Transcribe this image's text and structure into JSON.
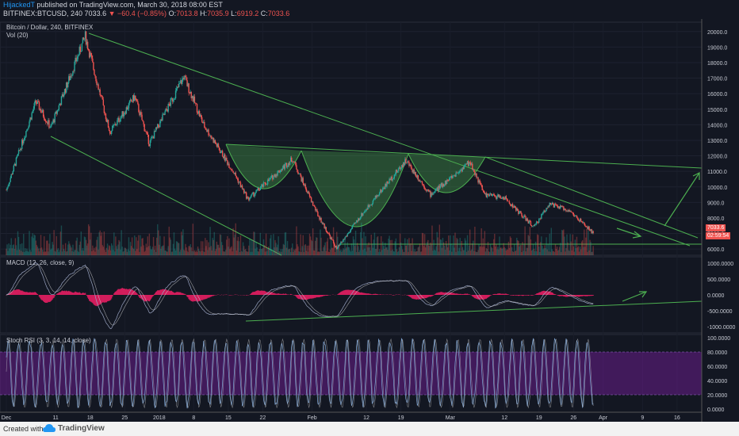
{
  "header": {
    "author": "HijackedT",
    "published": "published on TradingView.com, March 30, 2018 08:00 EST",
    "symbol": "BITFINEX:BTCUSD, 240",
    "price": "7033.6",
    "change": "▼ −60.4 (−0.85%)",
    "ohlc": {
      "o_label": "O:",
      "o": "7013.8",
      "h_label": "H:",
      "h": "7035.9",
      "l_label": "L:",
      "l": "6919.2",
      "c_label": "C:",
      "c": "7033.6"
    }
  },
  "pane_labels": {
    "main": "Bitcoin / Dollar, 240, BITFINEX",
    "vol": "Vol (20)",
    "macd": "MACD (12, 26, close, 9)",
    "stoch": "Stoch RSI (3, 3, 14, 14, close)"
  },
  "badges": {
    "price": "7033.6",
    "timer": "02:59:54"
  },
  "footer": {
    "created_with": "Created with",
    "brand": "TradingView"
  },
  "colors": {
    "up": "#26a69a",
    "down": "#ef5350",
    "trend": "#4caf50",
    "macd": "#e91e63",
    "stoch_band": "#7b1fa2"
  },
  "chart_data": [
    {
      "type": "candlestick",
      "title": "Bitcoin / Dollar, 240, BITFINEX",
      "x_ticks": [
        "Dec",
        "11",
        "18",
        "25",
        "2018",
        "8",
        "15",
        "22",
        "Feb",
        "12",
        "19",
        "Mar",
        "12",
        "19",
        "26",
        "Apr",
        "9",
        "16"
      ],
      "y_ticks": [
        "6000.0",
        "7000.0",
        "8000.0",
        "9000.0",
        "10000.0",
        "11000.0",
        "12000.0",
        "13000.0",
        "14000.0",
        "15000.0",
        "16000.0",
        "17000.0",
        "18000.0",
        "19000.0",
        "20000.0"
      ],
      "ylim": [
        5600,
        20600
      ],
      "last": 7033.6,
      "approx_path": [
        {
          "x": "Dec 1",
          "y": 9800
        },
        {
          "x": "Dec 7",
          "y": 15500
        },
        {
          "x": "Dec 10",
          "y": 13800
        },
        {
          "x": "Dec 17",
          "y": 19700
        },
        {
          "x": "Dec 22",
          "y": 13500
        },
        {
          "x": "Dec 27",
          "y": 15800
        },
        {
          "x": "Dec 30",
          "y": 12800
        },
        {
          "x": "Jan 6",
          "y": 17100
        },
        {
          "x": "Jan 10",
          "y": 14000
        },
        {
          "x": "Jan 16",
          "y": 11000
        },
        {
          "x": "Jan 19",
          "y": 9200
        },
        {
          "x": "Jan 28",
          "y": 11800
        },
        {
          "x": "Feb 2",
          "y": 8300
        },
        {
          "x": "Feb 6",
          "y": 6000
        },
        {
          "x": "Feb 11",
          "y": 8200
        },
        {
          "x": "Feb 20",
          "y": 11700
        },
        {
          "x": "Feb 25",
          "y": 9500
        },
        {
          "x": "Mar 5",
          "y": 11600
        },
        {
          "x": "Mar 8",
          "y": 9500
        },
        {
          "x": "Mar 12",
          "y": 9300
        },
        {
          "x": "Mar 18",
          "y": 7400
        },
        {
          "x": "Mar 21",
          "y": 8900
        },
        {
          "x": "Mar 25",
          "y": 8500
        },
        {
          "x": "Mar 30",
          "y": 7033.6
        }
      ]
    },
    {
      "type": "line",
      "title": "MACD (12, 26, close, 9)",
      "y_ticks": [
        "1000.0000",
        "500.0000",
        "0.0000",
        "-500.0000",
        "-1000.0000"
      ],
      "ylim": [
        -1200,
        1200
      ]
    },
    {
      "type": "line",
      "title": "Stoch RSI (3, 3, 14, 14, close)",
      "y_ticks": [
        "100.0000",
        "80.0000",
        "60.0000",
        "40.0000",
        "20.0000",
        "0.0000"
      ],
      "ylim": [
        0,
        100
      ],
      "bands": [
        20,
        80
      ]
    }
  ]
}
